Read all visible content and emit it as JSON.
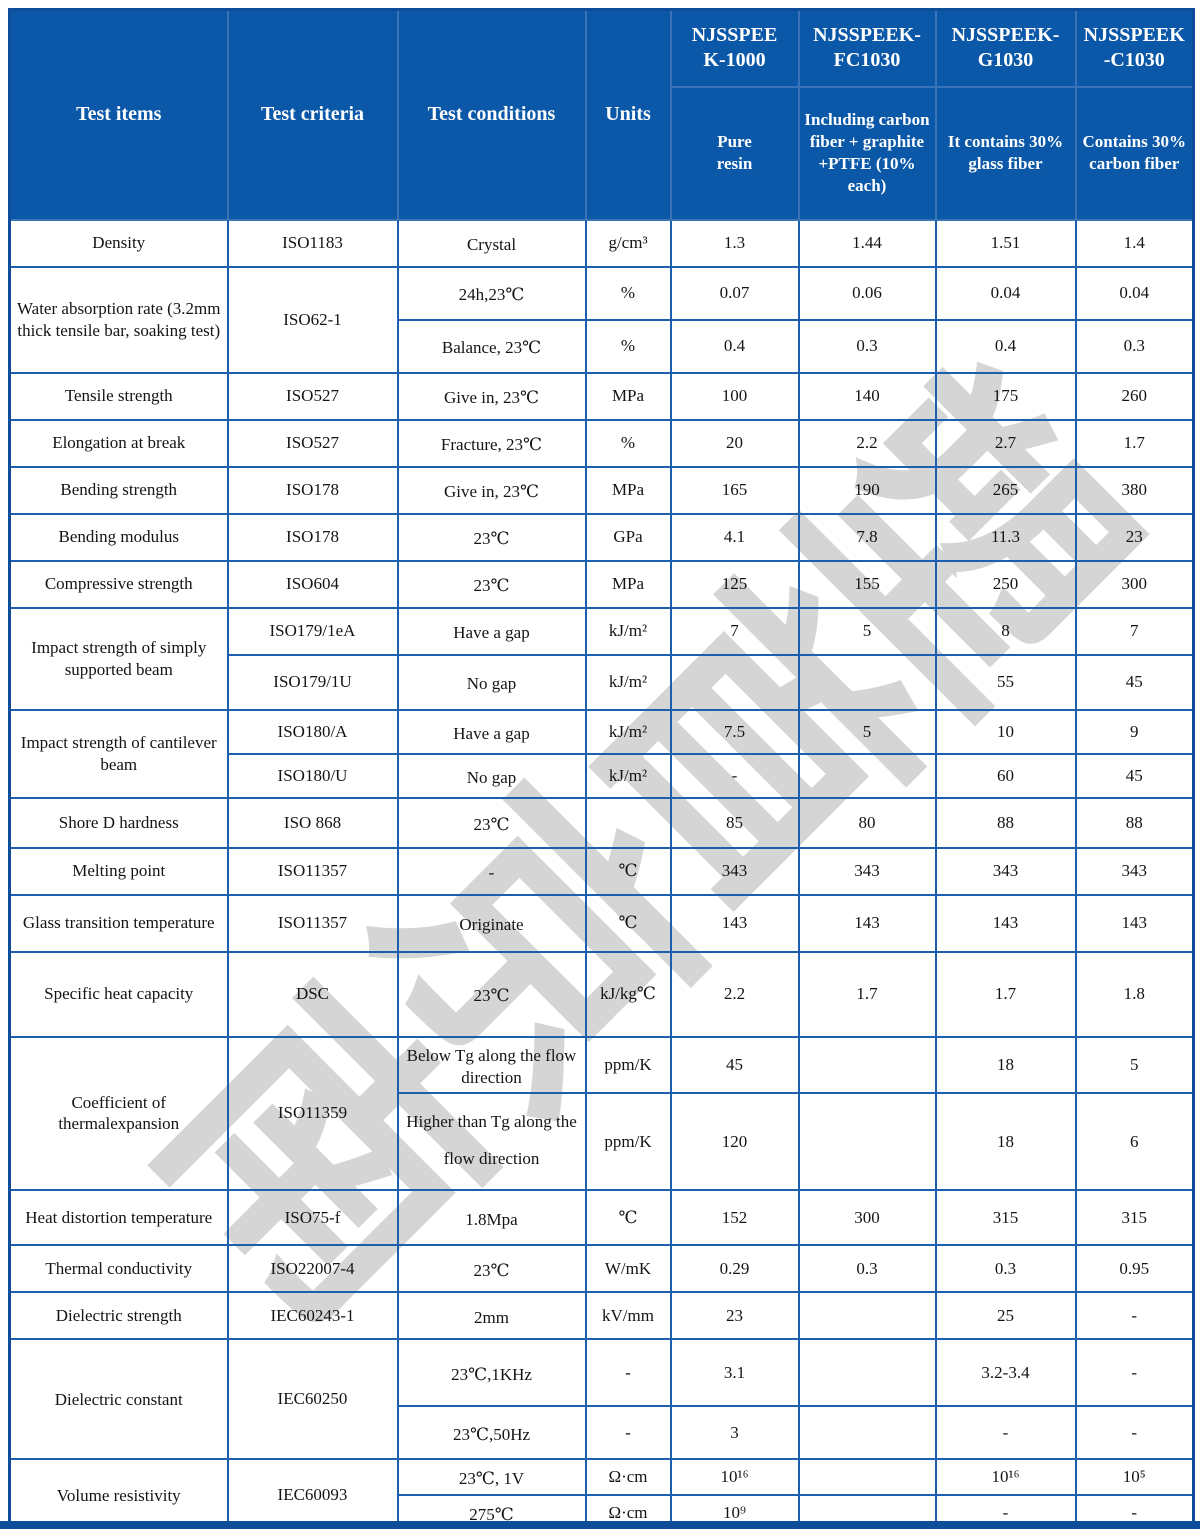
{
  "header": {
    "test_items": "Test items",
    "test_criteria": "Test criteria",
    "test_conditions": "Test conditions",
    "units": "Units"
  },
  "products": [
    {
      "name": "NJSSPEE\nK-1000",
      "desc": "Pure\nresin"
    },
    {
      "name": "NJSSPEEK-\nFC1030",
      "desc": "Including carbon fiber + graphite +PTFE (10% each)"
    },
    {
      "name": "NJSSPEEK-\nG1030",
      "desc": "It contains 30% glass fiber"
    },
    {
      "name": "NJSSPEEK\n-C1030",
      "desc": "Contains 30% carbon fiber"
    }
  ],
  "watermark": {
    "chars": [
      "南",
      "京",
      "首",
      "塑"
    ]
  },
  "colors": {
    "header_bg": "#0b58a8",
    "border": "#1b5fae",
    "outer_border": "#0d4d9a",
    "watermark_gray": "#d5d5d5"
  },
  "rows": [
    {
      "item": "Density",
      "criteria": "ISO1183",
      "condition": "Crystal",
      "unit": "g/cm³",
      "values": [
        "1.3",
        "1.44",
        "1.51",
        "1.4"
      ]
    },
    {
      "item": "Water absorption rate (3.2mm thick tensile bar, soaking test)",
      "item_rowspan": 2,
      "criteria": "ISO62-1",
      "criteria_rowspan": 2,
      "condition": "24h,23℃",
      "unit": "%",
      "values": [
        "0.07",
        "0.06",
        "0.04",
        "0.04"
      ]
    },
    {
      "condition": "Balance, 23℃",
      "unit": "%",
      "values": [
        "0.4",
        "0.3",
        "0.4",
        "0.3"
      ]
    },
    {
      "item": "Tensile strength",
      "criteria": "ISO527",
      "condition": "Give in, 23℃",
      "unit": "MPa",
      "values": [
        "100",
        "140",
        "175",
        "260"
      ]
    },
    {
      "item": "Elongation at break",
      "criteria": "ISO527",
      "condition": "Fracture, 23℃",
      "unit": "%",
      "values": [
        "20",
        "2.2",
        "2.7",
        "1.7"
      ]
    },
    {
      "item": "Bending strength",
      "criteria": "ISO178",
      "condition": "Give in, 23℃",
      "unit": "MPa",
      "values": [
        "165",
        "190",
        "265",
        "380"
      ]
    },
    {
      "item": "Bending modulus",
      "criteria": "ISO178",
      "condition": "23℃",
      "unit": "GPa",
      "values": [
        "4.1",
        "7.8",
        "11.3",
        "23"
      ]
    },
    {
      "item": "Compressive strength",
      "criteria": "ISO604",
      "condition": "23℃",
      "unit": "MPa",
      "values": [
        "125",
        "155",
        "250",
        "300"
      ]
    },
    {
      "item": "Impact strength of simply supported beam",
      "item_rowspan": 2,
      "criteria": "ISO179/1eA",
      "condition": "Have a gap",
      "unit": "kJ/m²",
      "values": [
        "7",
        "5",
        "8",
        "7"
      ]
    },
    {
      "criteria": "ISO179/1U",
      "condition": "No gap",
      "unit": "kJ/m²",
      "values": [
        "",
        "",
        "55",
        "45"
      ]
    },
    {
      "item": "Impact strength of cantilever beam",
      "item_rowspan": 2,
      "criteria": "ISO180/A",
      "condition": "Have a gap",
      "unit": "kJ/m²",
      "values": [
        "7.5",
        "5",
        "10",
        "9"
      ]
    },
    {
      "criteria": "ISO180/U",
      "condition": "No gap",
      "unit": "kJ/m²",
      "values": [
        "-",
        "",
        "60",
        "45"
      ]
    },
    {
      "item": "Shore D hardness",
      "criteria": "ISO 868",
      "condition": "23℃",
      "unit": "",
      "values": [
        "85",
        "80",
        "88",
        "88"
      ]
    },
    {
      "item": "Melting point",
      "criteria": "ISO11357",
      "condition": "-",
      "unit": "℃",
      "values": [
        "343",
        "343",
        "343",
        "343"
      ]
    },
    {
      "item": "Glass transition temperature",
      "criteria": "ISO11357",
      "condition": "Originate",
      "unit": "℃",
      "values": [
        "143",
        "143",
        "143",
        "143"
      ]
    },
    {
      "item": "Specific heat capacity",
      "criteria": "DSC",
      "condition": "23℃",
      "unit": "kJ/kg℃",
      "values": [
        "2.2",
        "1.7",
        "1.7",
        "1.8"
      ]
    },
    {
      "item": "Coefficient of thermalexpansion",
      "item_rowspan": 2,
      "criteria": "ISO11359",
      "criteria_rowspan": 2,
      "condition": "Below Tg along the flow direction",
      "unit": "ppm/K",
      "values": [
        "45",
        "",
        "18",
        "5"
      ]
    },
    {
      "condition": "Higher than Tg along the flow direction",
      "unit": "ppm/K",
      "values": [
        "120",
        "",
        "18",
        "6"
      ]
    },
    {
      "item": "Heat distortion temperature",
      "criteria": "ISO75-f",
      "condition": "1.8Mpa",
      "unit": "℃",
      "values": [
        "152",
        "300",
        "315",
        "315"
      ]
    },
    {
      "item": "Thermal conductivity",
      "criteria": "ISO22007-4",
      "condition": "23℃",
      "unit": "W/mK",
      "values": [
        "0.29",
        "0.3",
        "0.3",
        "0.95"
      ]
    },
    {
      "item": "Dielectric strength",
      "criteria": "IEC60243-1",
      "condition": "2mm",
      "unit": "kV/mm",
      "values": [
        "23",
        "",
        "25",
        "-"
      ]
    },
    {
      "item": "Dielectric constant",
      "item_rowspan": 2,
      "criteria": "IEC60250",
      "criteria_rowspan": 2,
      "condition": "23℃,1KHz",
      "unit": "-",
      "values": [
        "3.1",
        "",
        "3.2-3.4",
        "-"
      ]
    },
    {
      "condition": "23℃,50Hz",
      "unit": "-",
      "values": [
        "3",
        "",
        "-",
        "-"
      ]
    },
    {
      "item": "Volume resistivity",
      "item_rowspan": 2,
      "criteria": "IEC60093",
      "criteria_rowspan": 2,
      "condition": "23℃, 1V",
      "unit": "Ω·cm",
      "values": [
        "10¹⁶",
        "",
        "10¹⁶",
        "10⁵"
      ]
    },
    {
      "condition": "275℃",
      "unit": "Ω·cm",
      "values": [
        "10⁹",
        "",
        "-",
        "-"
      ]
    }
  ]
}
